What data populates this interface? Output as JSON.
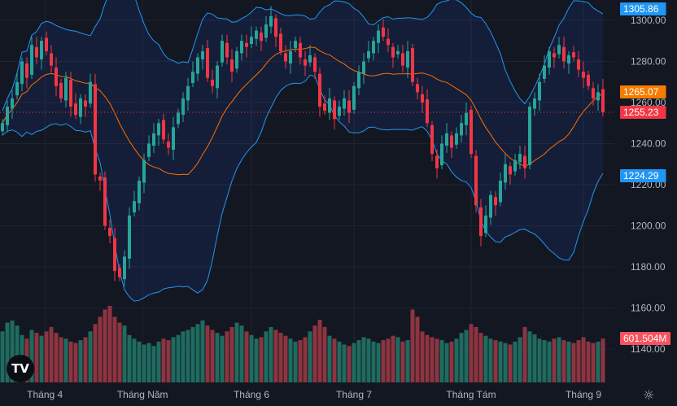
{
  "chart_data": {
    "type": "candlestick",
    "y_ticks": [
      1140,
      1160,
      1180,
      1200,
      1220,
      1240,
      1260,
      1280,
      1300
    ],
    "ylim": [
      1127,
      1310
    ],
    "x_ticks": [
      {
        "label": "Tháng 4",
        "bar": 8.7
      },
      {
        "label": "Tháng Năm",
        "bar": 28.7
      },
      {
        "label": "Tháng 6",
        "bar": 51
      },
      {
        "label": "Tháng 7",
        "bar": 72
      },
      {
        "label": "Tháng Tám",
        "bar": 96
      },
      {
        "label": "Tháng 9",
        "bar": 119
      }
    ],
    "close": [
      1250,
      1258,
      1262,
      1270,
      1280,
      1272,
      1288,
      1282,
      1290,
      1285,
      1278,
      1268,
      1262,
      1272,
      1258,
      1254,
      1262,
      1258,
      1270,
      1225,
      1222,
      1200,
      1195,
      1178,
      1175,
      1185,
      1205,
      1212,
      1222,
      1232,
      1240,
      1245,
      1250,
      1242,
      1238,
      1248,
      1255,
      1262,
      1268,
      1275,
      1282,
      1285,
      1272,
      1268,
      1278,
      1290,
      1282,
      1275,
      1285,
      1290,
      1287,
      1292,
      1295,
      1290,
      1298,
      1302,
      1292,
      1285,
      1280,
      1285,
      1290,
      1282,
      1278,
      1283,
      1275,
      1258,
      1256,
      1262,
      1252,
      1258,
      1262,
      1255,
      1268,
      1275,
      1280,
      1285,
      1290,
      1295,
      1292,
      1288,
      1282,
      1285,
      1278,
      1285,
      1270,
      1265,
      1260,
      1250,
      1235,
      1228,
      1240,
      1245,
      1238,
      1245,
      1250,
      1255,
      1235,
      1210,
      1195,
      1205,
      1215,
      1210,
      1222,
      1230,
      1225,
      1232,
      1235,
      1228,
      1258,
      1262,
      1270,
      1278,
      1285,
      1282,
      1288,
      1280,
      1283,
      1282,
      1276,
      1272,
      1268,
      1262,
      1265,
      1255.23
    ],
    "volume_m": [
      700,
      820,
      850,
      780,
      650,
      600,
      720,
      680,
      640,
      700,
      760,
      680,
      620,
      600,
      560,
      540,
      580,
      620,
      700,
      800,
      900,
      1000,
      1050,
      900,
      820,
      780,
      650,
      600,
      560,
      520,
      540,
      500,
      560,
      600,
      580,
      620,
      650,
      700,
      720,
      760,
      800,
      850,
      780,
      720,
      680,
      640,
      700,
      760,
      820,
      780,
      700,
      650,
      600,
      620,
      700,
      760,
      720,
      680,
      640,
      600,
      560,
      580,
      620,
      700,
      780,
      860,
      760,
      640,
      600,
      560,
      520,
      500,
      540,
      580,
      620,
      600,
      560,
      540,
      580,
      600,
      640,
      620,
      560,
      580,
      1000,
      900,
      700,
      650,
      620,
      600,
      580,
      540,
      560,
      600,
      680,
      720,
      800,
      760,
      680,
      640,
      600,
      580,
      560,
      540,
      520,
      560,
      620,
      760,
      700,
      660,
      600,
      580,
      560,
      600,
      620,
      580,
      560,
      540,
      580,
      620,
      560,
      540,
      560,
      601.504
    ],
    "tags": {
      "upper": {
        "text": "1305.86",
        "color": "#2196f3"
      },
      "basis": {
        "text": "1265.07",
        "color": "#f57c00"
      },
      "last": {
        "text": "1255.23",
        "color": "#f23645"
      },
      "lower": {
        "text": "1224.29",
        "color": "#2196f3"
      },
      "volume": {
        "text": "601.504M",
        "color": "#f7525f"
      }
    },
    "colors": {
      "up": "#26a69a",
      "down": "#f23645",
      "vol_up": "#1f6b5f",
      "vol_down": "#8e3440",
      "band": "#2196f3",
      "basis": "#ff6d00"
    }
  },
  "logo": "TV",
  "settings_icon": "gear-icon"
}
